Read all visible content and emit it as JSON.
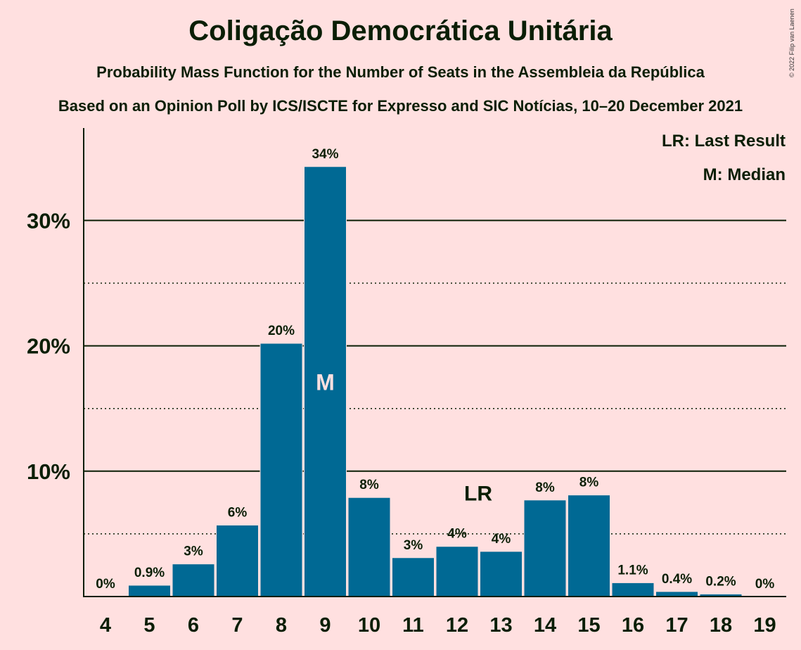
{
  "chart_data": {
    "type": "bar",
    "title": "Coligação Democrática Unitária",
    "subtitle": "Probability Mass Function for the Number of Seats in the Assembleia da República",
    "subtitle2": "Based on an Opinion Poll by ICS/ISCTE for Expresso and SIC Notícias, 10–20 December 2021",
    "copyright": "© 2022 Filip van Laenen",
    "categories": [
      "4",
      "5",
      "6",
      "7",
      "8",
      "9",
      "10",
      "11",
      "12",
      "13",
      "14",
      "15",
      "16",
      "17",
      "18",
      "19"
    ],
    "values": [
      0,
      0.9,
      2.6,
      5.7,
      20.2,
      34.3,
      7.9,
      3.1,
      4.0,
      3.6,
      7.7,
      8.1,
      1.1,
      0.4,
      0.2,
      0
    ],
    "value_labels": [
      "0%",
      "0.9%",
      "3%",
      "6%",
      "20%",
      "34%",
      "8%",
      "3%",
      "4%",
      "4%",
      "8%",
      "8%",
      "1.1%",
      "0.4%",
      "0.2%",
      "0%"
    ],
    "yticks": [
      10,
      20,
      30
    ],
    "ytick_labels": [
      "10%",
      "20%",
      "30%"
    ],
    "ylim": [
      0,
      37.5
    ],
    "grid_solid": [
      10,
      20,
      30
    ],
    "grid_dotted": [
      5,
      15,
      25
    ],
    "median_seat": "9",
    "median_marker": "M",
    "last_result_seat": "12",
    "last_result_marker": "LR",
    "legend": [
      "LR: Last Result",
      "M: Median"
    ],
    "bar_color": "#006994",
    "background": "#FFE0E0",
    "text_color": "#0A1E05"
  }
}
